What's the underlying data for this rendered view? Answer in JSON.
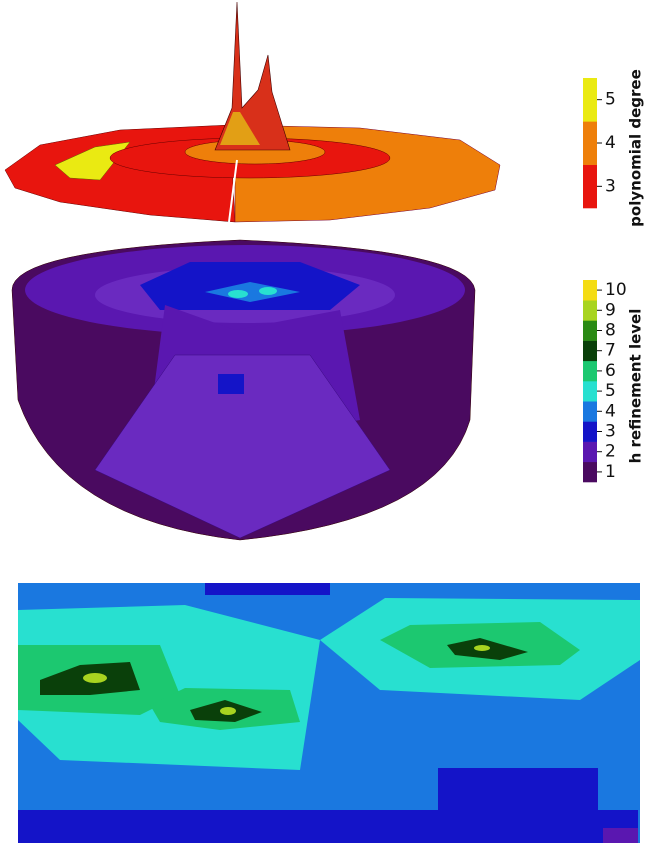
{
  "colorbars": [
    {
      "title": "polynomial degree",
      "ticks": [
        3,
        4,
        5
      ],
      "colors": [
        "#e8150e",
        "#ee7f0a",
        "#eaea12"
      ]
    },
    {
      "title": "h refinement level",
      "ticks": [
        1,
        2,
        3,
        4,
        5,
        6,
        7,
        8,
        9,
        10
      ],
      "colors": [
        "#4a0a60",
        "#5a17b0",
        "#1414c8",
        "#1a78e0",
        "#28e0d0",
        "#1cc870",
        "#0a400a",
        "#2a8a14",
        "#a8d420",
        "#f4dc14"
      ]
    }
  ]
}
